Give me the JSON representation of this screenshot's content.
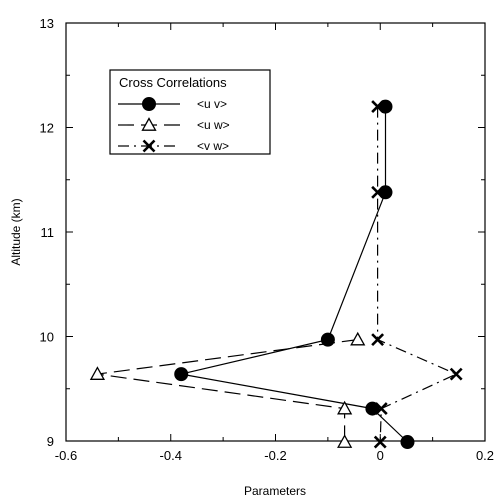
{
  "chart_data": {
    "type": "line",
    "title": "",
    "xlabel": "Parameters",
    "ylabel": "Altitude (km)",
    "xlim": [
      -0.6,
      0.2
    ],
    "ylim": [
      9,
      13
    ],
    "x_ticks": [
      "-0.6",
      "-0.4",
      "-0.2",
      "0",
      "0.2"
    ],
    "y_ticks": [
      "9",
      "10",
      "11",
      "12",
      "13"
    ],
    "grid": false,
    "legend": {
      "title": "Cross Correlations",
      "placement": "top-left"
    },
    "series": [
      {
        "name": "<u v>",
        "marker": "filled-circle",
        "line": "solid",
        "points": [
          {
            "x": 0.01,
            "y": 12.2
          },
          {
            "x": 0.01,
            "y": 11.38
          },
          {
            "x": -0.1,
            "y": 9.97
          },
          {
            "x": -0.38,
            "y": 9.64
          },
          {
            "x": -0.015,
            "y": 9.31
          },
          {
            "x": 0.052,
            "y": 8.99
          }
        ]
      },
      {
        "name": "<u w>",
        "marker": "open-triangle",
        "line": "long-dash",
        "points": [
          {
            "x": -0.043,
            "y": 9.97
          },
          {
            "x": -0.54,
            "y": 9.64
          },
          {
            "x": -0.068,
            "y": 9.31
          },
          {
            "x": -0.068,
            "y": 8.99
          }
        ]
      },
      {
        "name": "<v w>",
        "marker": "x",
        "line": "dash-dot",
        "points": [
          {
            "x": -0.005,
            "y": 12.2
          },
          {
            "x": -0.005,
            "y": 11.38
          },
          {
            "x": -0.005,
            "y": 9.97
          },
          {
            "x": 0.145,
            "y": 9.64
          },
          {
            "x": 0.002,
            "y": 9.31
          },
          {
            "x": 0.0,
            "y": 8.99
          }
        ]
      }
    ]
  }
}
